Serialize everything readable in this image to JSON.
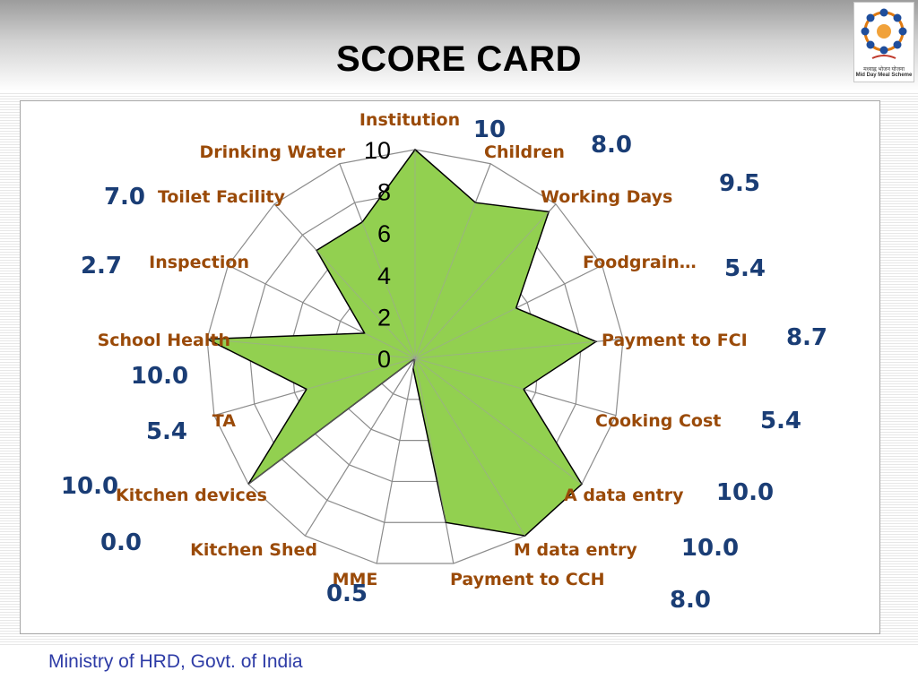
{
  "header": {
    "title": "SCORE CARD"
  },
  "logo": {
    "hindi_text": "मध्याह्न भोजन योजना",
    "english_text": "Mid Day Meal Scheme"
  },
  "footer": {
    "text": "Ministry of HRD, Govt. of India"
  },
  "colors": {
    "fill": "#92d050",
    "grid": "#8c8c8c",
    "category_text": "#9a4a08",
    "value_text": "#1a3d75"
  },
  "chart_data": {
    "type": "radar",
    "title": "",
    "rlim": [
      0,
      10
    ],
    "r_ticks": [
      0,
      2,
      4,
      6,
      8,
      10
    ],
    "grid": true,
    "categories": [
      "Institution",
      "Children",
      "Working Days",
      "Foodgrain…",
      "Payment to FCI",
      "Cooking Cost",
      "A data entry",
      "M data entry",
      "Payment to CCH",
      "MME",
      "Kitchen Shed",
      "Kitchen devices",
      "TA",
      "School Health",
      "Inspection",
      "Toilet Facility",
      "Drinking Water"
    ],
    "values": [
      10,
      8.0,
      9.5,
      5.4,
      8.7,
      5.4,
      10.0,
      10.0,
      8.0,
      0.5,
      0.0,
      10.0,
      5.4,
      10.0,
      2.7,
      7.0,
      7.0
    ],
    "value_labels": [
      "10",
      "8.0",
      "9.5",
      "5.4",
      "8.7",
      "5.4",
      "10.0",
      "10.0",
      "8.0",
      "0.5",
      "0.0",
      "10.0",
      "5.4",
      "10.0",
      "2.7",
      "7.0",
      ""
    ]
  }
}
